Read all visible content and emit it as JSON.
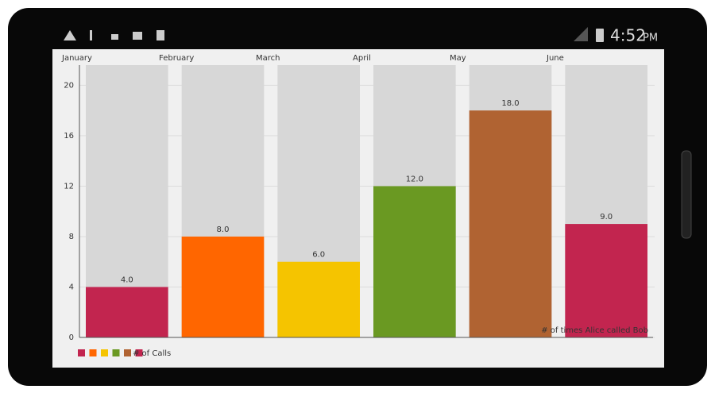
{
  "status_bar": {
    "time": "4:52",
    "period": "PM"
  },
  "chart_data": {
    "type": "bar",
    "categories": [
      "January",
      "February",
      "March",
      "April",
      "May",
      "June"
    ],
    "series": [
      {
        "name": "# of Calls",
        "colors": [
          "#c2254f",
          "#ff6600",
          "#f5c400",
          "#6a9922",
          "#b06332",
          "#c2254f"
        ],
        "values": [
          4,
          8,
          6,
          12,
          18,
          9
        ],
        "value_labels": [
          "4.0",
          "8.0",
          "6.0",
          "12.0",
          "18.0",
          "9.0"
        ]
      }
    ],
    "description": "# of times Alice called Bob",
    "ylim": [
      0,
      21.6
    ],
    "yticks": [
      0,
      4,
      8,
      12,
      16,
      20
    ],
    "grid": true
  }
}
